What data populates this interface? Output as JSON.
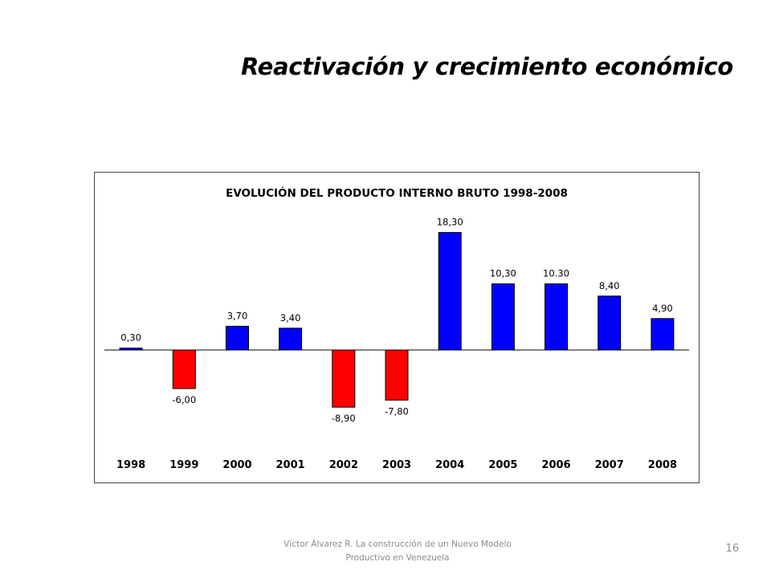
{
  "slide": {
    "title": "Reactivación y crecimiento económico",
    "footer_line1": "Víctor Álvarez R. La construcción de un Nuevo Modelo",
    "footer_line2": "Productivo en Venezuela",
    "page_number": "16"
  },
  "chart_data": {
    "type": "bar",
    "title": "EVOLUCIÓN DEL PRODUCTO INTERNO BRUTO 1998-2008",
    "xlabel": "",
    "ylabel": "",
    "categories": [
      "1998",
      "1999",
      "2000",
      "2001",
      "2002",
      "2003",
      "2004",
      "2005",
      "2006",
      "2007",
      "2008"
    ],
    "values": [
      0.3,
      -6.0,
      3.7,
      3.4,
      -8.9,
      -7.8,
      18.3,
      10.3,
      10.3,
      8.4,
      4.9
    ],
    "value_labels": [
      "0,30",
      "-6,00",
      "3,70",
      "3,40",
      "-8,90",
      "-7,80",
      "18,30",
      "10,30",
      "10.30",
      "8,40",
      "4,90"
    ],
    "positive_color": "#0000ff",
    "negative_color": "#ff0000",
    "grid": false,
    "legend": "none"
  }
}
